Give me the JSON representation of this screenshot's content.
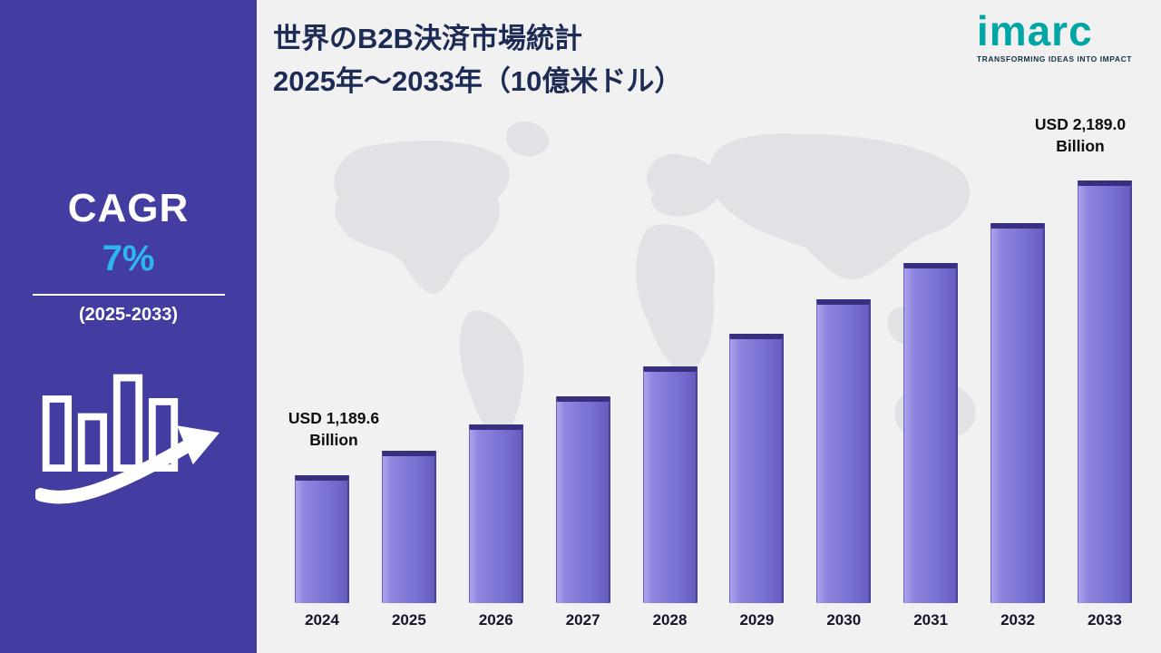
{
  "sidebar": {
    "cagr_label": "CAGR",
    "cagr_value": "7%",
    "period": "(2025-2033)"
  },
  "header": {
    "title_line1": "世界のB2B決済市場統計",
    "title_line2": "2025年～2033年（10億米ドル）"
  },
  "logo": {
    "name": "imarc",
    "tagline": "TRANSFORMING IDEAS INTO IMPACT"
  },
  "chart_data": {
    "type": "bar",
    "title": "世界のB2B決済市場統計 2025年～2033年（10億米ドル）",
    "unit": "USD Billion",
    "categories": [
      "2024",
      "2025",
      "2026",
      "2027",
      "2028",
      "2029",
      "2030",
      "2031",
      "2032",
      "2033"
    ],
    "values": [
      1189.6,
      1272.9,
      1362.0,
      1457.3,
      1559.3,
      1668.5,
      1785.3,
      1910.2,
      2043.9,
      2189.0
    ],
    "annotations": [
      {
        "line1": "USD 1,189.6",
        "line2": "Billion",
        "target": "2024"
      },
      {
        "line1": "USD 2,189.0",
        "line2": "Billion",
        "target": "2033"
      }
    ],
    "legend": [],
    "grid": false,
    "colors": {
      "bar_fill": "#7b73d4",
      "bar_cap": "#37307f",
      "sidebar_bg": "#443da1",
      "cagr_value": "#2fb5f2",
      "logo_teal": "#00a5a5",
      "title_text": "#1e2c55"
    }
  }
}
